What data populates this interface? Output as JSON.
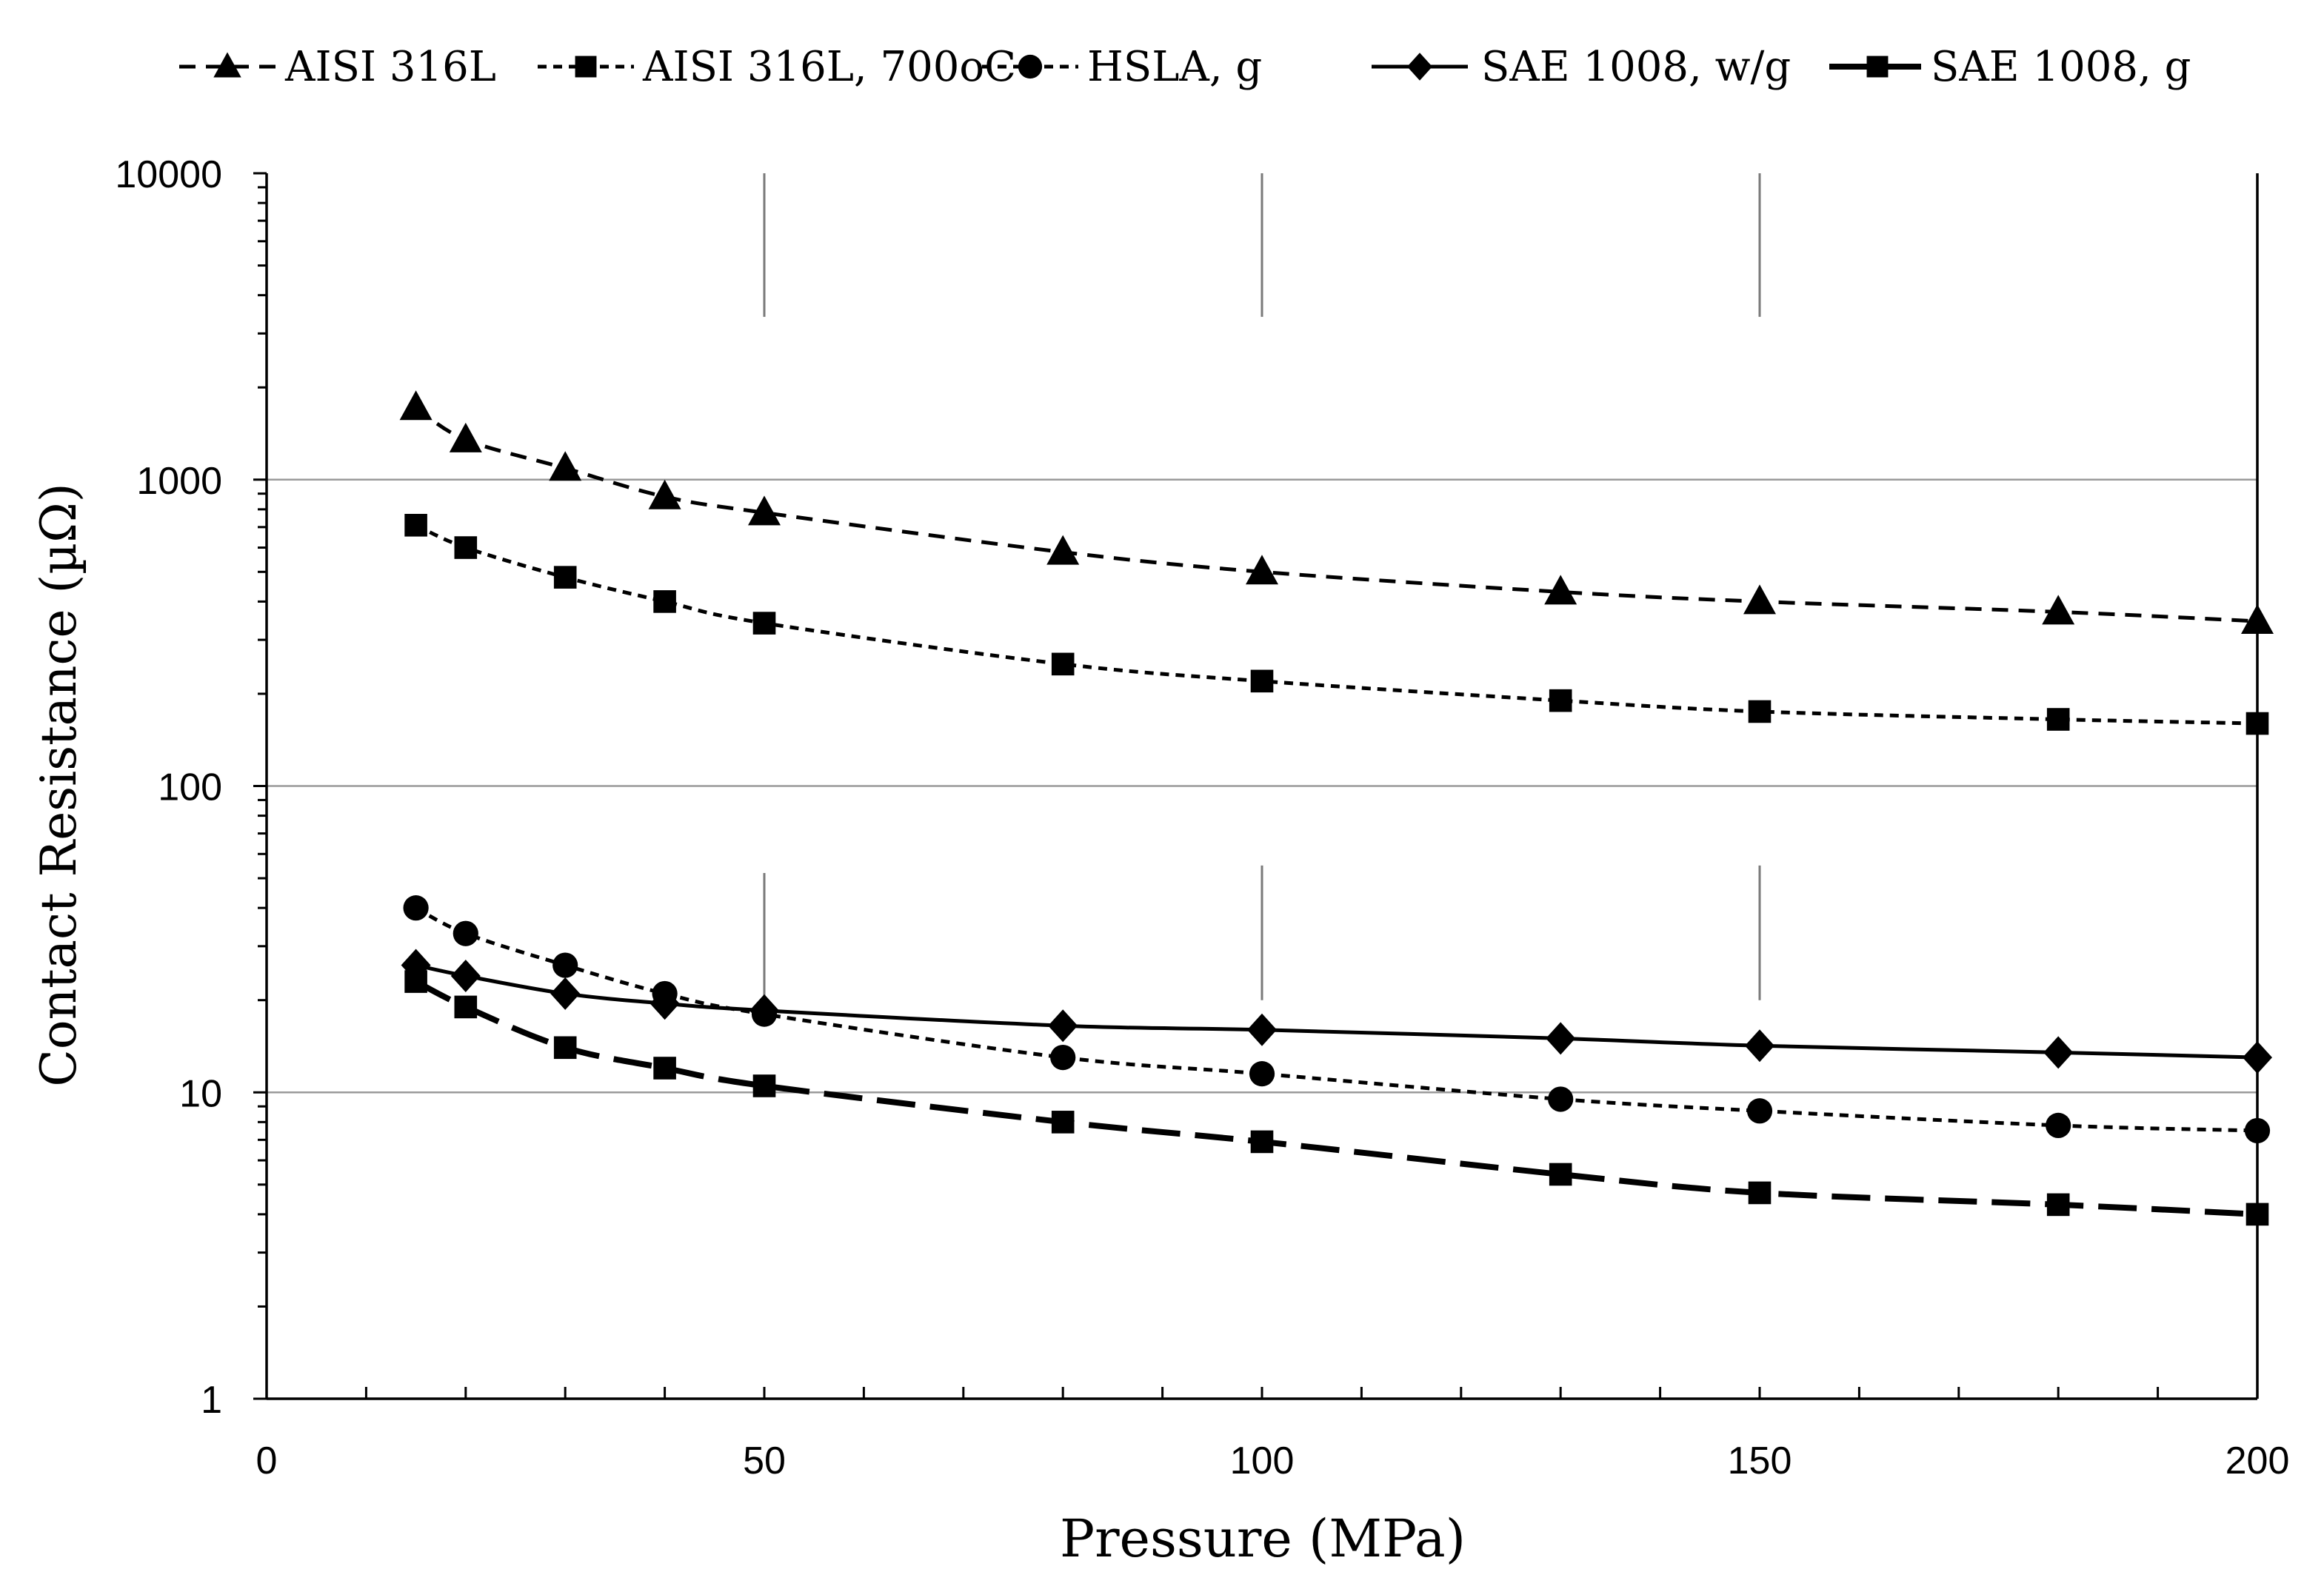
{
  "chart_data": {
    "type": "line",
    "title": "",
    "xlabel": "Pressure (MPa)",
    "ylabel": "Contact Resistance (µΩ)",
    "xlim": [
      0,
      200
    ],
    "ylim": [
      1,
      10000
    ],
    "yscale": "log",
    "grid": true,
    "legend_position": "top",
    "x_ticks": [
      0,
      50,
      100,
      150,
      200
    ],
    "x_tick_labels": [
      "0",
      "50",
      "100",
      "150",
      "200"
    ],
    "y_ticks": [
      1,
      10,
      100,
      1000,
      10000
    ],
    "y_tick_labels": [
      "1",
      "10",
      "100",
      "1000",
      "10000"
    ],
    "x": [
      15,
      20,
      30,
      40,
      50,
      80,
      100,
      130,
      150,
      180,
      200
    ],
    "series": [
      {
        "name": "AISI 316L",
        "marker": "triangle",
        "line_style": "dashed",
        "values": [
          1720,
          1350,
          1090,
          880,
          780,
          580,
          500,
          430,
          400,
          370,
          345
        ]
      },
      {
        "name": "AISI 316L, 700oC",
        "marker": "square",
        "line_style": "short-dashed",
        "values": [
          710,
          600,
          480,
          400,
          340,
          250,
          220,
          190,
          175,
          165,
          160
        ]
      },
      {
        "name": "HSLA, g",
        "marker": "circle",
        "line_style": "short-dashed",
        "values": [
          40,
          33,
          26,
          21,
          18,
          13,
          11.5,
          9.5,
          8.7,
          7.8,
          7.5
        ]
      },
      {
        "name": "SAE 1008, w/g",
        "marker": "diamond",
        "line_style": "solid",
        "values": [
          26,
          24,
          21,
          19.5,
          18.5,
          16.5,
          16,
          15,
          14.2,
          13.5,
          13
        ]
      },
      {
        "name": "SAE 1008, g",
        "marker": "square",
        "line_style": "long-dashed",
        "values": [
          23,
          19,
          14,
          12,
          10.5,
          8,
          6.9,
          5.4,
          4.7,
          4.3,
          4
        ]
      }
    ],
    "error_bars": [
      {
        "x": 50,
        "low": 3400,
        "high": 10000
      },
      {
        "x": 100,
        "low": 3400,
        "high": 10000
      },
      {
        "x": 150,
        "low": 3400,
        "high": 10000
      },
      {
        "x": 50,
        "low": 20,
        "high": 52
      },
      {
        "x": 100,
        "low": 20,
        "high": 55
      },
      {
        "x": 150,
        "low": 20,
        "high": 55
      }
    ],
    "colors": {
      "series": "#000000",
      "gridline": "#9a9a9a",
      "axis": "#000000",
      "errorbar": "#7a7a7a"
    }
  }
}
